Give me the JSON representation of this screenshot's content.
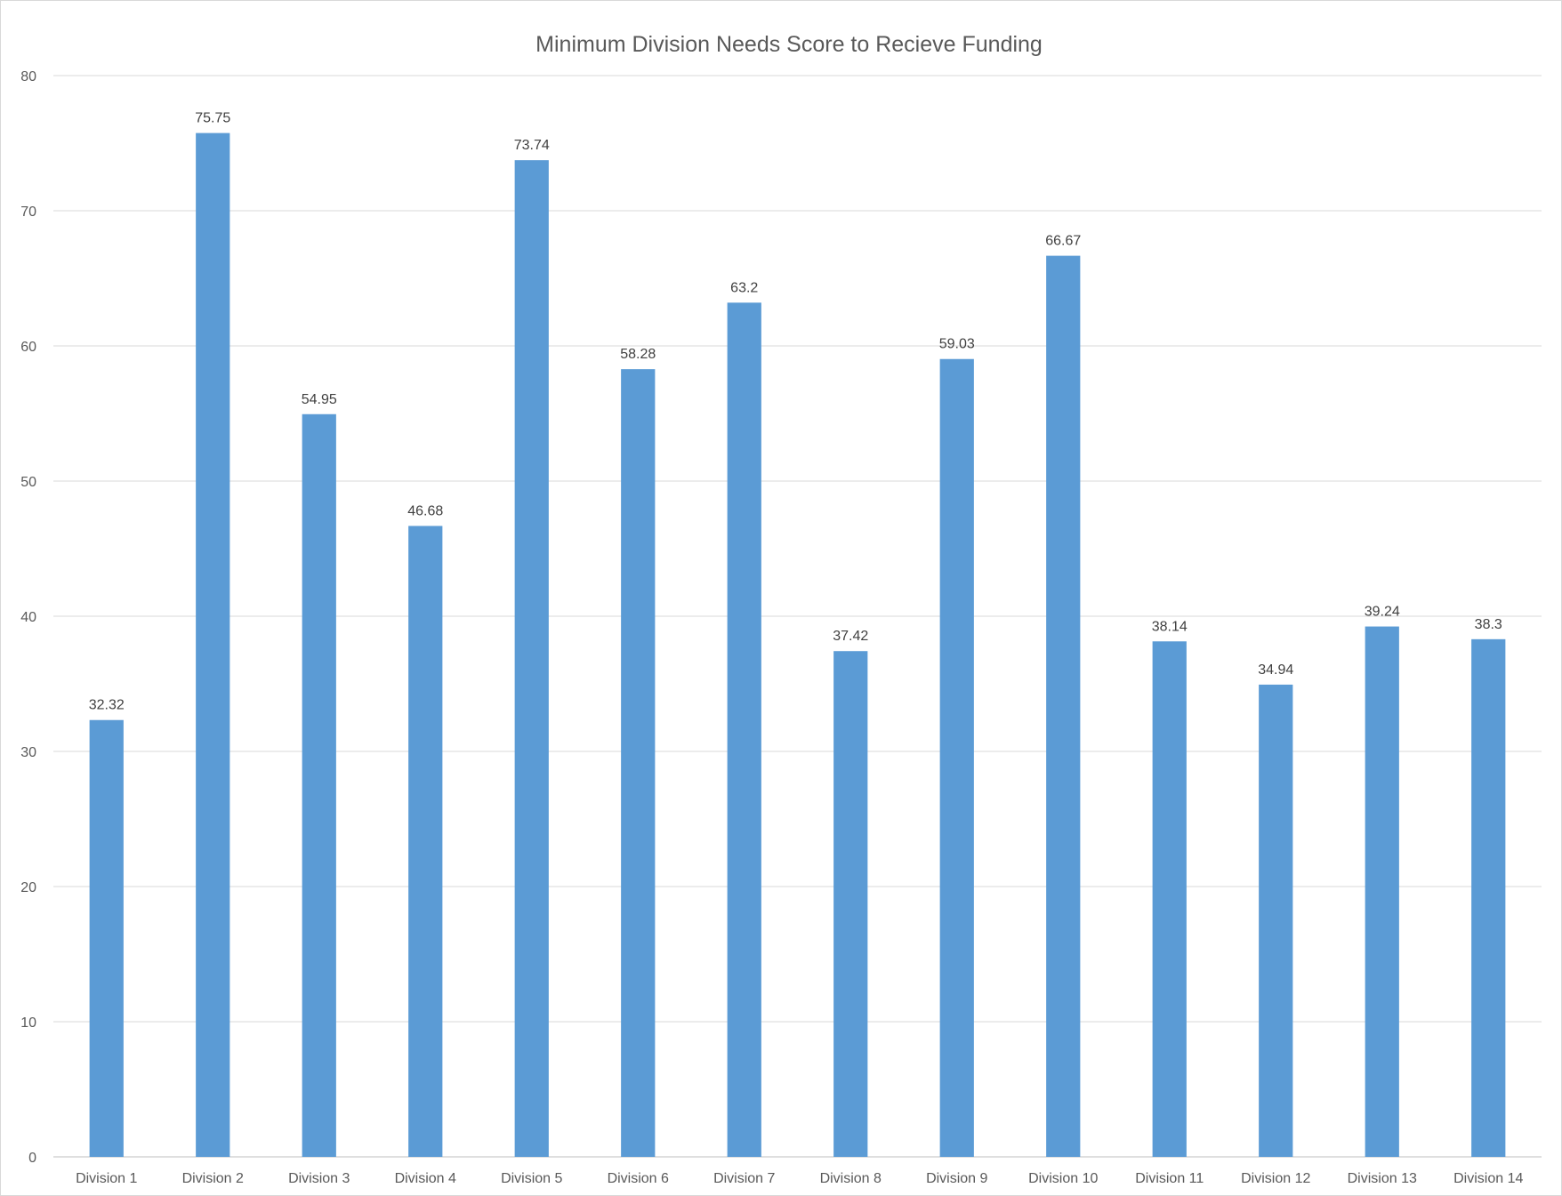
{
  "chart_data": {
    "type": "bar",
    "title": "Minimum Division Needs Score to Recieve Funding",
    "xlabel": "",
    "ylabel": "",
    "categories": [
      "Division 1",
      "Division 2",
      "Division 3",
      "Division 4",
      "Division 5",
      "Division 6",
      "Division 7",
      "Division 8",
      "Division 9",
      "Division 10",
      "Division 11",
      "Division 12",
      "Division 13",
      "Division 14"
    ],
    "values": [
      32.32,
      75.75,
      54.95,
      46.68,
      73.74,
      58.28,
      63.2,
      37.42,
      59.03,
      66.67,
      38.14,
      34.94,
      39.24,
      38.3
    ],
    "data_labels": [
      "32.32",
      "75.75",
      "54.95",
      "46.68",
      "73.74",
      "58.28",
      "63.2",
      "37.42",
      "59.03",
      "66.67",
      "38.14",
      "34.94",
      "39.24",
      "38.3"
    ],
    "ylim": [
      0,
      80
    ],
    "yticks": [
      0,
      10,
      20,
      30,
      40,
      50,
      60,
      70,
      80
    ],
    "grid": true,
    "legend": "none",
    "bar_color": "#5b9bd5"
  }
}
